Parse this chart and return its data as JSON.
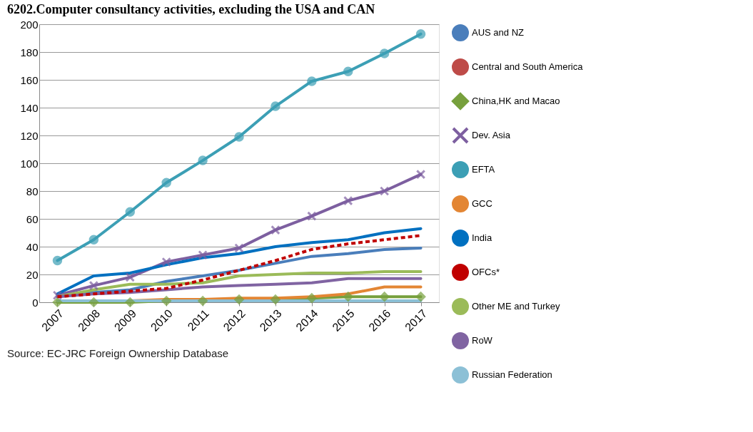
{
  "chart_data": {
    "type": "line",
    "title": "6202.Computer consultancy activities, excluding the USA and CAN",
    "categories": [
      "2007",
      "2008",
      "2009",
      "2010",
      "2011",
      "2012",
      "2013",
      "2014",
      "2015",
      "2016",
      "2017"
    ],
    "ylim": [
      0,
      200
    ],
    "yticks": [
      0,
      20,
      40,
      60,
      80,
      100,
      120,
      140,
      160,
      180,
      200
    ],
    "grid": "y",
    "legend": "right",
    "annotations": [
      "Source: EC-JRC Foreign Ownership Database"
    ],
    "series": [
      {
        "name": "AUS and NZ",
        "color": "#4a7ebb",
        "values": [
          4,
          7,
          9,
          15,
          19,
          23,
          28,
          33,
          35,
          38,
          39
        ]
      },
      {
        "name": "Central and South America",
        "color": "#be4b48",
        "values": [
          null,
          null,
          null,
          null,
          null,
          null,
          null,
          null,
          null,
          null,
          null
        ]
      },
      {
        "name": "China,HK and Macao",
        "color": "#77a03d",
        "marker": "diamond",
        "values": [
          0,
          0,
          0,
          1,
          1,
          2,
          2,
          3,
          4,
          4,
          4
        ]
      },
      {
        "name": "Dev. Asia",
        "color": "#7d5fa0",
        "marker": "cross",
        "values": [
          5,
          12,
          18,
          29,
          34,
          39,
          52,
          62,
          73,
          80,
          92
        ]
      },
      {
        "name": "EFTA",
        "color": "#3c9fb5",
        "marker": "circle",
        "values": [
          30,
          45,
          65,
          86,
          102,
          119,
          141,
          159,
          166,
          179,
          193
        ]
      },
      {
        "name": "GCC",
        "color": "#e38634",
        "values": [
          1,
          1,
          1,
          2,
          2,
          3,
          3,
          4,
          6,
          11,
          11
        ]
      },
      {
        "name": "India",
        "color": "#0070c0",
        "values": [
          6,
          19,
          21,
          27,
          32,
          35,
          40,
          43,
          45,
          50,
          53
        ]
      },
      {
        "name": "OFCs*",
        "color": "#c00000",
        "line_style": "dashed",
        "values": [
          4,
          6,
          8,
          10,
          16,
          23,
          30,
          38,
          42,
          45,
          48
        ]
      },
      {
        "name": "Other ME and Turkey",
        "color": "#9bbb59",
        "values": [
          4,
          9,
          13,
          13,
          14,
          19,
          20,
          21,
          21,
          22,
          22
        ]
      },
      {
        "name": "RoW",
        "color": "#8064a2",
        "values": [
          4,
          6,
          7,
          9,
          11,
          12,
          13,
          14,
          17,
          17,
          17
        ]
      },
      {
        "name": "Russian Federation",
        "color": "#8cc0d6",
        "values": [
          1,
          1,
          1,
          1,
          1,
          1,
          1,
          1,
          1,
          1,
          1
        ]
      }
    ]
  }
}
